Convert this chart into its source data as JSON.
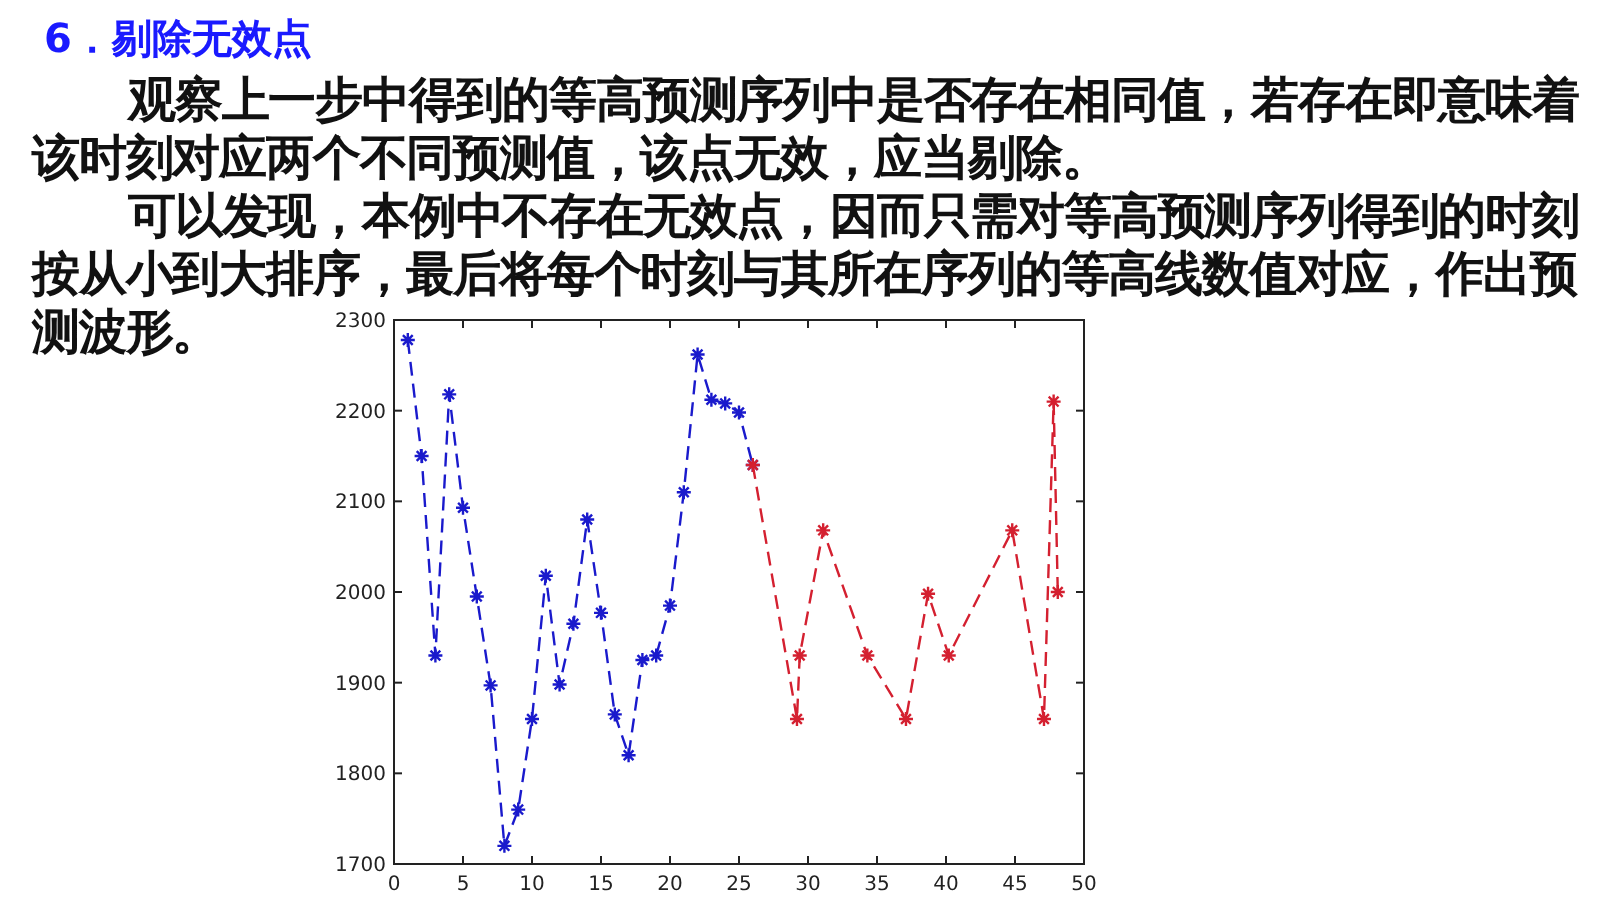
{
  "chart_data": {
    "type": "line",
    "title": "6．剔除无效点",
    "annotations": [
      "观察上一步中得到的等高预测序列中是否存在相同值，若存在即意味着该时刻对应两个不同预测值，该点无效，应当剔除。",
      "可以发现，本例中不存在无效点，因而只需对等高预测序列得到的时刻按从小到大排序，最后将每个时刻与其所在序列的等高线数值对应，作出预测波形。"
    ],
    "series": [
      {
        "color": "#1a1acc",
        "x": [
          1,
          2,
          3,
          4,
          5,
          6,
          7,
          8,
          9,
          10,
          11,
          12,
          13,
          14,
          15,
          16,
          17,
          18,
          19,
          20,
          21,
          22,
          23,
          24,
          25,
          26
        ],
        "values": [
          2278,
          2150,
          1930,
          2218,
          2093,
          1995,
          1897,
          1720,
          1760,
          1860,
          2018,
          1898,
          1965,
          2080,
          1977,
          1865,
          1820,
          1925,
          1930,
          1985,
          2110,
          2262,
          2212,
          2208,
          2198,
          2140
        ]
      },
      {
        "color": "#d42030",
        "x": [
          26,
          29.2,
          29.4,
          31.1,
          34.3,
          37.1,
          38.7,
          40.2,
          44.8,
          47.1,
          47.8,
          48.1
        ],
        "values": [
          2140,
          1860,
          1930,
          2068,
          1930,
          1860,
          1998,
          1930,
          2068,
          1860,
          2210,
          2000
        ]
      }
    ],
    "xlim": [
      0,
      50
    ],
    "xticks": [
      0,
      5,
      10,
      15,
      20,
      25,
      30,
      35,
      40,
      45,
      50
    ],
    "ylim": [
      1700,
      2300
    ],
    "yticks": [
      1700,
      1800,
      1900,
      2000,
      2100,
      2200,
      2300
    ],
    "marker": "cross",
    "line_style": "dashed"
  }
}
